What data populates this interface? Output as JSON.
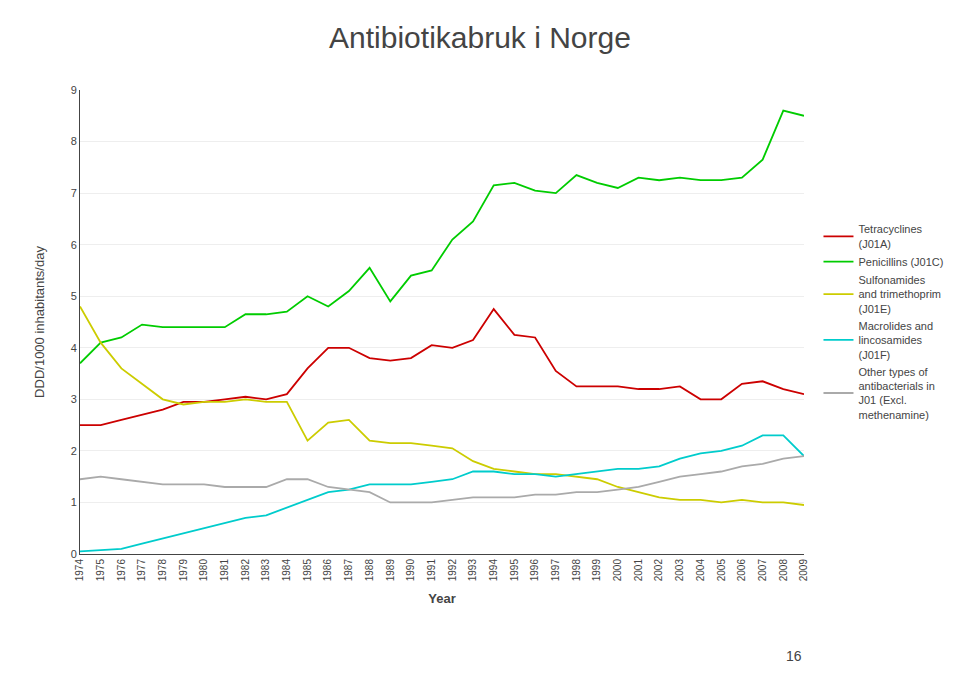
{
  "chart_data": {
    "type": "line",
    "title": "Antibiotikabruk i Norge",
    "x_label": "Year",
    "y_label": "DDD/1000 inhabitants/day",
    "x": [
      1974,
      1975,
      1976,
      1977,
      1978,
      1979,
      1980,
      1981,
      1982,
      1983,
      1984,
      1985,
      1986,
      1987,
      1988,
      1989,
      1990,
      1991,
      1992,
      1993,
      1994,
      1995,
      1996,
      1997,
      1998,
      1999,
      2000,
      2001,
      2002,
      2003,
      2004,
      2005,
      2006,
      2007,
      2008,
      2009
    ],
    "series": [
      {
        "name": "Tetracyclines\n(J01A)",
        "color": "#cc0000",
        "values": [
          2.5,
          2.5,
          2.6,
          2.7,
          2.8,
          2.95,
          2.95,
          3.0,
          3.05,
          3.0,
          3.1,
          3.6,
          4.0,
          4.0,
          3.8,
          3.75,
          3.8,
          4.05,
          4.0,
          4.15,
          4.75,
          4.25,
          4.2,
          3.55,
          3.25,
          3.25,
          3.25,
          3.2,
          3.2,
          3.25,
          3.0,
          3.0,
          3.3,
          3.35,
          3.2,
          3.1
        ]
      },
      {
        "name": "Penicillins (J01C)",
        "color": "#00cc00",
        "values": [
          3.7,
          4.1,
          4.2,
          4.45,
          4.4,
          4.4,
          4.4,
          4.4,
          4.65,
          4.65,
          4.7,
          5.0,
          4.8,
          5.1,
          5.55,
          4.9,
          5.4,
          5.5,
          6.1,
          6.45,
          7.15,
          7.2,
          7.05,
          7.0,
          7.35,
          7.2,
          7.1,
          7.3,
          7.25,
          7.3,
          7.25,
          7.25,
          7.3,
          7.65,
          8.6,
          8.5
        ]
      },
      {
        "name": "Sulfonamides\nand trimethoprim\n(J01E)",
        "color": "#cccc00",
        "values": [
          4.8,
          4.1,
          3.6,
          3.3,
          3.0,
          2.9,
          2.95,
          2.95,
          3.0,
          2.95,
          2.95,
          2.2,
          2.55,
          2.6,
          2.2,
          2.15,
          2.15,
          2.1,
          2.05,
          1.8,
          1.65,
          1.6,
          1.55,
          1.55,
          1.5,
          1.45,
          1.3,
          1.2,
          1.1,
          1.05,
          1.05,
          1.0,
          1.05,
          1.0,
          1.0,
          0.95
        ]
      },
      {
        "name": "Macrolides and\nlincosamides\n(J01F)",
        "color": "#00cccc",
        "values": [
          0.05,
          0.07,
          0.1,
          0.2,
          0.3,
          0.4,
          0.5,
          0.6,
          0.7,
          0.75,
          0.9,
          1.05,
          1.2,
          1.25,
          1.35,
          1.35,
          1.35,
          1.4,
          1.45,
          1.6,
          1.6,
          1.55,
          1.55,
          1.5,
          1.55,
          1.6,
          1.65,
          1.65,
          1.7,
          1.85,
          1.95,
          2.0,
          2.1,
          2.3,
          2.3,
          1.9
        ]
      },
      {
        "name": "Other types of\nantibacterials in\nJ01 (Excl.\nmethenamine)",
        "color": "#aaaaaa",
        "values": [
          1.45,
          1.5,
          1.45,
          1.4,
          1.35,
          1.35,
          1.35,
          1.3,
          1.3,
          1.3,
          1.45,
          1.45,
          1.3,
          1.25,
          1.2,
          1.0,
          1.0,
          1.0,
          1.05,
          1.1,
          1.1,
          1.1,
          1.15,
          1.15,
          1.2,
          1.2,
          1.25,
          1.3,
          1.4,
          1.5,
          1.55,
          1.6,
          1.7,
          1.75,
          1.85,
          1.9
        ]
      }
    ],
    "xlim": [
      1974,
      2009
    ],
    "xticks": [
      1974,
      1975,
      1976,
      1977,
      1978,
      1979,
      1980,
      1981,
      1982,
      1983,
      1984,
      1985,
      1986,
      1987,
      1988,
      1989,
      1990,
      1991,
      1992,
      1993,
      1994,
      1995,
      1996,
      1997,
      1998,
      1999,
      2000,
      2001,
      2002,
      2003,
      2004,
      2005,
      2006,
      2007,
      2008,
      2009
    ],
    "ylim": [
      0,
      9
    ],
    "yticks": [
      0,
      1,
      2,
      3,
      4,
      5,
      6,
      7,
      8,
      9
    ],
    "grid": true,
    "legend": "right",
    "annotations": [
      "16"
    ]
  }
}
